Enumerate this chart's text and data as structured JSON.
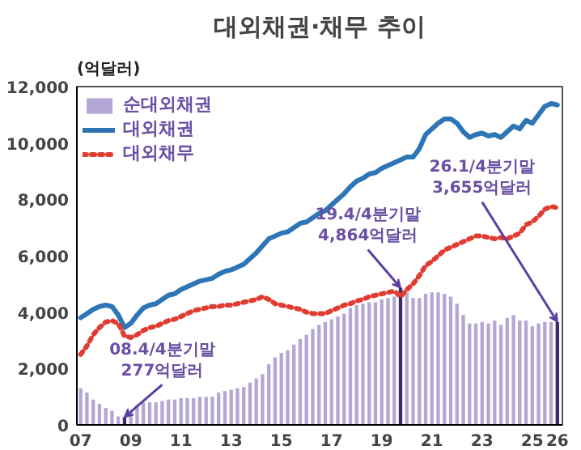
{
  "chart_data": {
    "type": "bar",
    "title": "대외채권·채무 추이",
    "ylabel": "(억달러)",
    "x": [
      2007,
      2007.25,
      2007.5,
      2007.75,
      2008,
      2008.25,
      2008.5,
      2008.75,
      2009,
      2009.25,
      2009.5,
      2009.75,
      2010,
      2010.25,
      2010.5,
      2010.75,
      2011,
      2011.25,
      2011.5,
      2011.75,
      2012,
      2012.25,
      2012.5,
      2012.75,
      2013,
      2013.25,
      2013.5,
      2013.75,
      2014,
      2014.25,
      2014.5,
      2014.75,
      2015,
      2015.25,
      2015.5,
      2015.75,
      2016,
      2016.25,
      2016.5,
      2016.75,
      2017,
      2017.25,
      2017.5,
      2017.75,
      2018,
      2018.25,
      2018.5,
      2018.75,
      2019,
      2019.25,
      2019.5,
      2019.75,
      2020,
      2020.25,
      2020.5,
      2020.75,
      2021,
      2021.25,
      2021.5,
      2021.75,
      2022,
      2022.25,
      2022.5,
      2022.75,
      2023,
      2023.25,
      2023.5,
      2023.75,
      2024,
      2024.25,
      2024.5,
      2024.75,
      2025,
      2025.25,
      2025.5,
      2025.75,
      2026
    ],
    "series": [
      {
        "name": "순대외채권",
        "color": "#b4a7d6",
        "colors": [
          "#b4a7d6",
          "#b4a7d6",
          "#b4a7d6",
          "#b4a7d6",
          "#b4a7d6",
          "#b4a7d6",
          "#b4a7d6",
          "#3d2b6b",
          "#b4a7d6",
          "#b4a7d6",
          "#b4a7d6",
          "#b4a7d6",
          "#b4a7d6",
          "#b4a7d6",
          "#b4a7d6",
          "#b4a7d6",
          "#b4a7d6",
          "#b4a7d6",
          "#b4a7d6",
          "#b4a7d6",
          "#b4a7d6",
          "#b4a7d6",
          "#b4a7d6",
          "#b4a7d6",
          "#b4a7d6",
          "#b4a7d6",
          "#b4a7d6",
          "#b4a7d6",
          "#b4a7d6",
          "#b4a7d6",
          "#b4a7d6",
          "#b4a7d6",
          "#b4a7d6",
          "#b4a7d6",
          "#b4a7d6",
          "#b4a7d6",
          "#b4a7d6",
          "#b4a7d6",
          "#b4a7d6",
          "#b4a7d6",
          "#b4a7d6",
          "#b4a7d6",
          "#b4a7d6",
          "#b4a7d6",
          "#b4a7d6",
          "#b4a7d6",
          "#b4a7d6",
          "#b4a7d6",
          "#b4a7d6",
          "#b4a7d6",
          "#b4a7d6",
          "#3d2b6b",
          "#b4a7d6",
          "#b4a7d6",
          "#b4a7d6",
          "#b4a7d6",
          "#b4a7d6",
          "#b4a7d6",
          "#b4a7d6",
          "#b4a7d6",
          "#b4a7d6",
          "#b4a7d6",
          "#b4a7d6",
          "#b4a7d6",
          "#b4a7d6",
          "#b4a7d6",
          "#b4a7d6",
          "#b4a7d6",
          "#b4a7d6",
          "#b4a7d6",
          "#b4a7d6",
          "#b4a7d6",
          "#b4a7d6",
          "#b4a7d6",
          "#b4a7d6",
          "#b4a7d6",
          "#3d2b6b"
        ],
        "values": [
          1300,
          1150,
          900,
          750,
          600,
          500,
          300,
          277,
          500,
          700,
          800,
          800,
          800,
          850,
          900,
          900,
          950,
          950,
          950,
          1000,
          1000,
          1000,
          1150,
          1200,
          1250,
          1300,
          1350,
          1500,
          1650,
          1800,
          2150,
          2400,
          2550,
          2650,
          2850,
          3050,
          3200,
          3400,
          3550,
          3650,
          3750,
          3850,
          3950,
          4150,
          4250,
          4300,
          4350,
          4350,
          4450,
          4500,
          4550,
          4864,
          4700,
          4500,
          4500,
          4650,
          4700,
          4700,
          4650,
          4550,
          4300,
          3900,
          3600,
          3600,
          3650,
          3600,
          3700,
          3550,
          3800,
          3900,
          3700,
          3700,
          3500,
          3600,
          3650,
          3650,
          3655
        ]
      },
      {
        "name": "대외채권",
        "type": "line",
        "color": "#2e75b6",
        "line_style": "solid",
        "values": [
          3800,
          3950,
          4100,
          4200,
          4250,
          4200,
          3900,
          3450,
          3600,
          3900,
          4150,
          4250,
          4300,
          4450,
          4600,
          4650,
          4800,
          4900,
          5000,
          5100,
          5150,
          5200,
          5350,
          5450,
          5500,
          5600,
          5700,
          5900,
          6100,
          6350,
          6600,
          6700,
          6800,
          6850,
          7000,
          7150,
          7200,
          7350,
          7500,
          7600,
          7800,
          8000,
          8200,
          8450,
          8650,
          8750,
          8900,
          8950,
          9100,
          9200,
          9300,
          9400,
          9500,
          9500,
          9800,
          10300,
          10500,
          10700,
          10850,
          10850,
          10700,
          10400,
          10200,
          10300,
          10350,
          10250,
          10300,
          10200,
          10400,
          10600,
          10500,
          10800,
          10700,
          11000,
          11300,
          11400,
          11350
        ]
      },
      {
        "name": "대외채무",
        "type": "line",
        "color": "#e03c31",
        "line_style": "dotted",
        "values": [
          2500,
          2800,
          3200,
          3450,
          3650,
          3700,
          3600,
          3150,
          3100,
          3200,
          3350,
          3450,
          3500,
          3600,
          3700,
          3750,
          3850,
          3950,
          4050,
          4100,
          4150,
          4200,
          4200,
          4250,
          4250,
          4300,
          4350,
          4400,
          4450,
          4550,
          4450,
          4300,
          4250,
          4200,
          4150,
          4100,
          4000,
          3950,
          3950,
          3950,
          4050,
          4150,
          4250,
          4300,
          4400,
          4450,
          4550,
          4600,
          4650,
          4700,
          4750,
          4550,
          4800,
          5000,
          5300,
          5650,
          5800,
          6000,
          6200,
          6300,
          6400,
          6500,
          6600,
          6700,
          6700,
          6650,
          6600,
          6650,
          6600,
          6700,
          6800,
          7100,
          7200,
          7400,
          7650,
          7750,
          7700
        ]
      }
    ],
    "annotations": [
      {
        "text": "08.4/4분기말\n277억달러",
        "x": 2008.75,
        "y": 277
      },
      {
        "text": "19.4/4분기말\n4,864억달러",
        "x": 2019.75,
        "y": 4864
      },
      {
        "text": "26.1/4분기말\n3,655억달러",
        "x": 2026,
        "y": 3655
      }
    ],
    "xlim": [
      2006.85,
      2026.2
    ],
    "ylim": [
      0,
      12000
    ],
    "xticks": [
      {
        "value": 2007,
        "label": "07"
      },
      {
        "value": 2009,
        "label": "09"
      },
      {
        "value": 2011,
        "label": "11"
      },
      {
        "value": 2013,
        "label": "13"
      },
      {
        "value": 2015,
        "label": "15"
      },
      {
        "value": 2017,
        "label": "17"
      },
      {
        "value": 2019,
        "label": "19"
      },
      {
        "value": 2021,
        "label": "21"
      },
      {
        "value": 2023,
        "label": "23"
      },
      {
        "value": 2025,
        "label": "25"
      },
      {
        "value": 2026,
        "label": "26"
      }
    ],
    "yticks": [
      0,
      {
        "value": 2000,
        "label": "2,000"
      },
      {
        "value": 4000,
        "label": "4,000"
      },
      {
        "value": 6000,
        "label": "6,000"
      },
      {
        "value": 8000,
        "label": "8,000"
      },
      {
        "value": 10000,
        "label": "10,000"
      },
      {
        "value": 12000,
        "label": "12,000"
      }
    ],
    "grid": false,
    "legend": "top left"
  }
}
